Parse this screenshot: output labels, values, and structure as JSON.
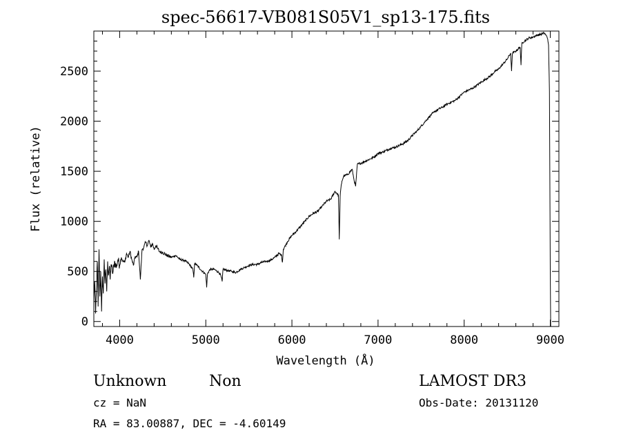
{
  "chart_data": {
    "type": "line",
    "title": "spec-56617-VB081S05V1_sp13-175.fits",
    "xlabel": "Wavelength (Å)",
    "ylabel": "Flux (relative)",
    "xlim": [
      3700,
      9100
    ],
    "ylim": [
      -50,
      2900
    ],
    "xticks": [
      4000,
      5000,
      6000,
      7000,
      8000,
      9000
    ],
    "yticks": [
      0,
      500,
      1000,
      1500,
      2000,
      2500
    ],
    "xtick_labels": [
      "4000",
      "5000",
      "6000",
      "7000",
      "8000",
      "9000"
    ],
    "ytick_labels": [
      "0",
      "500",
      "1000",
      "1500",
      "2000",
      "2500"
    ],
    "series": [
      {
        "name": "flux",
        "x": [
          3700,
          3710,
          3720,
          3730,
          3740,
          3750,
          3760,
          3770,
          3780,
          3790,
          3800,
          3810,
          3820,
          3830,
          3840,
          3850,
          3860,
          3870,
          3880,
          3890,
          3900,
          3920,
          3940,
          3960,
          3980,
          4000,
          4020,
          4040,
          4060,
          4080,
          4100,
          4120,
          4140,
          4160,
          4180,
          4200,
          4220,
          4240,
          4260,
          4280,
          4300,
          4320,
          4340,
          4360,
          4380,
          4400,
          4420,
          4440,
          4460,
          4480,
          4500,
          4550,
          4600,
          4650,
          4700,
          4750,
          4800,
          4850,
          4860,
          4870,
          4900,
          4950,
          5000,
          5010,
          5020,
          5050,
          5100,
          5150,
          5170,
          5190,
          5200,
          5250,
          5300,
          5350,
          5400,
          5450,
          5500,
          5550,
          5600,
          5650,
          5700,
          5750,
          5800,
          5850,
          5880,
          5890,
          5900,
          5950,
          6000,
          6050,
          6100,
          6150,
          6200,
          6250,
          6300,
          6350,
          6400,
          6450,
          6500,
          6540,
          6550,
          6560,
          6570,
          6580,
          6600,
          6650,
          6700,
          6720,
          6740,
          6760,
          6800,
          6850,
          6900,
          6950,
          7000,
          7050,
          7100,
          7150,
          7200,
          7250,
          7300,
          7350,
          7400,
          7450,
          7500,
          7550,
          7600,
          7650,
          7700,
          7750,
          7800,
          7850,
          7900,
          7950,
          8000,
          8050,
          8100,
          8150,
          8200,
          8250,
          8300,
          8350,
          8400,
          8450,
          8500,
          8540,
          8550,
          8560,
          8600,
          8650,
          8660,
          8670,
          8700,
          8750,
          8800,
          8850,
          8900,
          8930,
          8950,
          8970,
          8980,
          8990,
          9000,
          9005
        ],
        "y": [
          200,
          400,
          80,
          300,
          600,
          150,
          720,
          250,
          500,
          100,
          450,
          280,
          620,
          380,
          520,
          300,
          600,
          460,
          550,
          420,
          570,
          480,
          600,
          540,
          620,
          560,
          640,
          600,
          590,
          680,
          640,
          700,
          620,
          560,
          650,
          640,
          700,
          420,
          720,
          740,
          790,
          760,
          810,
          740,
          780,
          720,
          760,
          730,
          700,
          690,
          690,
          660,
          640,
          660,
          620,
          610,
          580,
          520,
          440,
          580,
          560,
          510,
          470,
          340,
          480,
          520,
          520,
          490,
          470,
          400,
          520,
          510,
          500,
          490,
          520,
          540,
          560,
          570,
          570,
          590,
          600,
          610,
          640,
          680,
          660,
          590,
          720,
          800,
          860,
          900,
          950,
          1000,
          1050,
          1080,
          1100,
          1150,
          1200,
          1220,
          1300,
          1260,
          820,
          1250,
          1340,
          1400,
          1450,
          1470,
          1520,
          1420,
          1350,
          1570,
          1580,
          1600,
          1620,
          1640,
          1680,
          1690,
          1710,
          1730,
          1740,
          1760,
          1780,
          1810,
          1860,
          1900,
          1950,
          2000,
          2050,
          2090,
          2120,
          2140,
          2170,
          2190,
          2210,
          2250,
          2290,
          2310,
          2330,
          2360,
          2390,
          2420,
          2450,
          2490,
          2520,
          2570,
          2620,
          2680,
          2500,
          2680,
          2700,
          2740,
          2560,
          2780,
          2800,
          2830,
          2840,
          2860,
          2870,
          2880,
          2860,
          2820,
          2760,
          2300,
          500,
          -50
        ]
      }
    ]
  },
  "annotations": {
    "object_class": "Unknown",
    "object_subclass": "Non",
    "survey": "LAMOST DR3",
    "cz": "cz = NaN",
    "obs_date": "Obs-Date: 20131120",
    "coords": "RA =  83.00887, DEC =  -4.60149"
  }
}
